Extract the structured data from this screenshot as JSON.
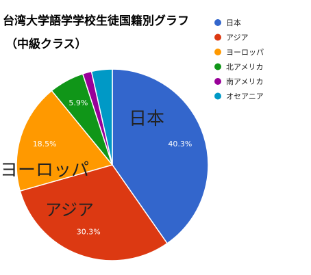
{
  "chart_data": {
    "type": "pie",
    "title": "台湾大学語学学校生徒国籍別グラフ",
    "subtitle": "（中級クラス）",
    "legend_position": "right",
    "categories": [
      "日本",
      "アジア",
      "ヨーロッパ",
      "北アメリカ",
      "南アメリカ",
      "オセアニア"
    ],
    "values": [
      40.3,
      30.3,
      18.5,
      5.9,
      1.5,
      3.5
    ],
    "data_labels": [
      "40.3%",
      "30.3%",
      "18.5%",
      "5.9%",
      "",
      ""
    ],
    "colors": [
      "#3366cc",
      "#dc3912",
      "#ff9900",
      "#109618",
      "#990099",
      "#0099c6"
    ],
    "annotations": [
      "日本",
      "アジア",
      "ヨーロッパ"
    ]
  }
}
